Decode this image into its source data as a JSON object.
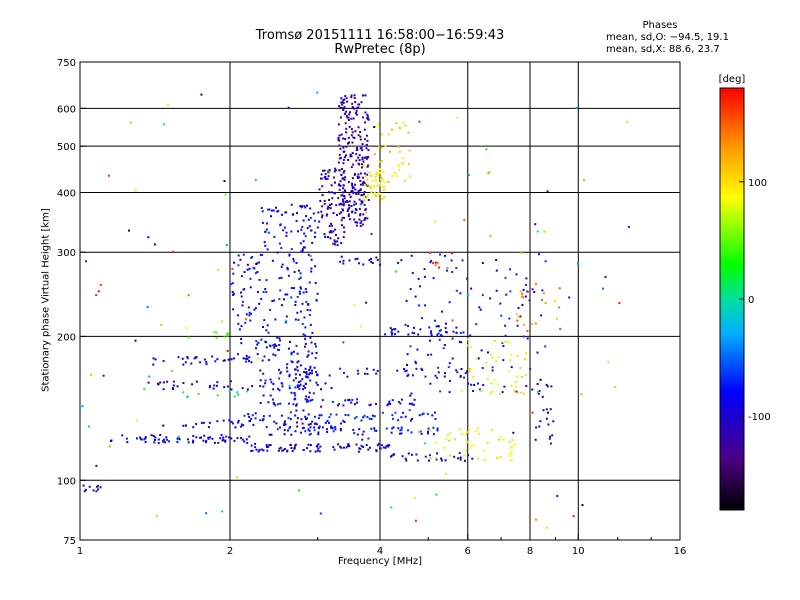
{
  "chart_data": {
    "type": "scatter",
    "title": "Tromsø 20151111 16:58:00−16:59:43",
    "subtitle": "RwPretec (8p)",
    "xlabel": "Frequency [MHz]",
    "ylabel": "Stationary phase Virtual Height [km]",
    "x_scale": "log",
    "y_scale": "log",
    "xlim": [
      1,
      16
    ],
    "ylim": [
      75,
      750
    ],
    "grid": true,
    "x_ticks": [
      {
        "value": 1,
        "label": "1"
      },
      {
        "value": 2,
        "label": "2"
      },
      {
        "value": 4,
        "label": "4"
      },
      {
        "value": 6,
        "label": "6"
      },
      {
        "value": 8,
        "label": "8"
      },
      {
        "value": 10,
        "label": "10"
      },
      {
        "value": 16,
        "label": "16"
      }
    ],
    "y_ticks": [
      {
        "value": 75,
        "label": "75"
      },
      {
        "value": 100,
        "label": "100"
      },
      {
        "value": 200,
        "label": "200"
      },
      {
        "value": 300,
        "label": "300"
      },
      {
        "value": 400,
        "label": "400"
      },
      {
        "value": 500,
        "label": "500"
      },
      {
        "value": 600,
        "label": "600"
      },
      {
        "value": 750,
        "label": "750"
      }
    ],
    "phases": {
      "header": "Phases",
      "o_line": "mean, sd,O:  −94.5, 19.1",
      "x_line": "mean, sd,X:  88.6, 23.7"
    },
    "colorbar": {
      "label": "[deg]",
      "range": [
        -180,
        180
      ],
      "ticks": [
        {
          "value": 100,
          "label": "100"
        },
        {
          "value": 0,
          "label": "0"
        },
        {
          "value": -100,
          "label": "-100"
        }
      ]
    },
    "clusters": [
      {
        "kind": "h",
        "f": [
          1.0,
          1.1
        ],
        "h": 96,
        "phase": -125,
        "n": 10
      },
      {
        "kind": "h",
        "f": [
          1.15,
          2.2
        ],
        "h": 122,
        "phase": -108,
        "n": 70
      },
      {
        "kind": "h",
        "f": [
          2.2,
          4.2
        ],
        "h": 117,
        "phase": -115,
        "n": 80
      },
      {
        "kind": "h",
        "f": [
          1.6,
          3.4
        ],
        "h": 131,
        "phase": -110,
        "n": 55
      },
      {
        "kind": "h",
        "f": [
          2.4,
          5.5
        ],
        "h": 127,
        "phase": -98,
        "n": 60
      },
      {
        "kind": "h",
        "f": [
          2.1,
          5.3
        ],
        "h": 136,
        "phase": -92,
        "n": 55
      },
      {
        "kind": "h",
        "f": [
          2.3,
          4.9
        ],
        "h": 145,
        "phase": -100,
        "n": 50
      },
      {
        "kind": "h",
        "f": [
          1.6,
          2.2
        ],
        "h": 152,
        "phase": 20,
        "n": 10
      },
      {
        "kind": "h",
        "f": [
          4.2,
          6.2
        ],
        "h": 112,
        "phase": -118,
        "n": 28
      },
      {
        "kind": "h",
        "f": [
          1.3,
          3.2
        ],
        "h": 158,
        "phase": -120,
        "n": 45
      },
      {
        "kind": "h",
        "f": [
          1.4,
          2.4
        ],
        "h": 178,
        "phase": -112,
        "n": 35
      },
      {
        "kind": "h",
        "f": [
          4.0,
          6.0
        ],
        "h": 205,
        "phase": -105,
        "n": 30
      },
      {
        "kind": "h",
        "f": [
          2.6,
          6.0
        ],
        "h": 168,
        "phase": -102,
        "n": 40
      },
      {
        "kind": "h",
        "f": [
          1.6,
          2.0
        ],
        "h": 202,
        "phase": 60,
        "n": 8
      },
      {
        "kind": "h",
        "f": [
          3.3,
          4.5
        ],
        "h": 288,
        "phase": -112,
        "n": 18
      },
      {
        "kind": "v",
        "f": [
          2.3,
          3.0
        ],
        "h": [
          150,
          380
        ],
        "phase": -102,
        "n": 230
      },
      {
        "kind": "v",
        "f": [
          2.0,
          2.3
        ],
        "h": [
          175,
          300
        ],
        "phase": -98,
        "n": 60
      },
      {
        "kind": "v",
        "f": [
          3.0,
          3.4
        ],
        "h": [
          310,
          450
        ],
        "phase": -125,
        "n": 90
      },
      {
        "kind": "v",
        "f": [
          3.3,
          3.8
        ],
        "h": [
          340,
          640
        ],
        "phase": -128,
        "n": 260
      },
      {
        "kind": "v",
        "f": [
          3.7,
          4.1
        ],
        "h": [
          380,
          470
        ],
        "phase": 105,
        "n": 45
      },
      {
        "kind": "v",
        "f": [
          3.9,
          4.6
        ],
        "h": [
          420,
          560
        ],
        "phase": 110,
        "n": 40
      },
      {
        "kind": "v",
        "f": [
          2.6,
          3.0
        ],
        "h": [
          130,
          200
        ],
        "phase": -110,
        "n": 40
      },
      {
        "kind": "v",
        "f": [
          4.5,
          8.6
        ],
        "h": [
          150,
          300
        ],
        "phase": -96,
        "n": 130
      },
      {
        "kind": "v",
        "f": [
          5.0,
          7.5
        ],
        "h": [
          110,
          130
        ],
        "phase": 92,
        "n": 45
      },
      {
        "kind": "v",
        "f": [
          6.0,
          8.0
        ],
        "h": [
          150,
          200
        ],
        "phase": 98,
        "n": 40
      },
      {
        "kind": "v",
        "f": [
          7.5,
          9.2
        ],
        "h": [
          200,
          260
        ],
        "phase": 140,
        "n": 20
      },
      {
        "kind": "v",
        "f": [
          5.0,
          5.6
        ],
        "h": [
          270,
          300
        ],
        "phase": 170,
        "n": 8
      },
      {
        "kind": "v",
        "f": [
          8.2,
          9.0
        ],
        "h": [
          120,
          160
        ],
        "phase": -118,
        "n": 20
      },
      {
        "kind": "v",
        "f": [
          1.0,
          13
        ],
        "h": [
          78,
          700
        ],
        "phase": 0,
        "n": 120
      }
    ]
  }
}
